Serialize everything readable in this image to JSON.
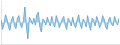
{
  "chart_data": {
    "type": "area",
    "x": [
      0,
      1,
      2,
      3,
      4,
      5,
      6,
      7,
      8,
      9,
      10,
      11,
      12,
      13,
      14,
      15,
      16,
      17,
      18,
      19,
      20,
      21,
      22,
      23,
      24,
      25,
      26,
      27,
      28,
      29,
      30,
      31,
      32,
      33,
      34,
      35,
      36,
      37,
      38,
      39,
      40,
      41,
      42,
      43,
      44,
      45,
      46,
      47,
      48,
      49,
      50,
      51,
      52,
      53,
      54,
      55,
      56,
      57,
      58,
      59,
      60,
      61,
      62,
      63,
      64,
      65,
      66,
      67,
      68,
      69,
      70,
      71,
      72,
      73,
      74,
      75,
      76,
      77,
      78,
      79
    ],
    "series": [
      {
        "type": "area",
        "color": "#7ab8e0",
        "values": [
          0.3,
          -0.8,
          -0.2,
          0.9,
          0.4,
          -0.5,
          -0.9,
          0.3,
          0.7,
          -0.4,
          -0.7,
          0.5,
          0.8,
          -0.3,
          -0.6,
          0.2,
          1.8,
          -0.4,
          -1.9,
          0.6,
          0.3,
          -0.2,
          0.5,
          -0.3,
          0.9,
          1.2,
          -0.5,
          -1.1,
          0.4,
          0.2,
          -0.3,
          0.6,
          0.1,
          -0.4,
          0.7,
          -0.2,
          -0.5,
          0.8,
          0.3,
          -0.6,
          -0.2,
          0.4,
          0.7,
          -0.3,
          -0.8,
          0.5,
          0.2,
          -0.4,
          0.6,
          -0.3,
          -0.6,
          0.3,
          0.9,
          -0.2,
          -0.7,
          0.4,
          0.1,
          -0.5,
          0.8,
          -0.3,
          -0.9,
          0.5,
          0.3,
          -0.4,
          0.7,
          0.2,
          -0.6,
          -0.2,
          0.8,
          0.4,
          -0.5,
          -0.8,
          0.3,
          0.6,
          -0.2,
          -0.4,
          0.7,
          0.2,
          -0.3,
          0.5
        ]
      },
      {
        "type": "line",
        "color": "#4d94cc",
        "values": [
          0.3,
          -0.8,
          -0.2,
          0.9,
          0.4,
          -0.5,
          -0.9,
          0.3,
          0.7,
          -0.4,
          -0.7,
          0.5,
          0.8,
          -0.3,
          -0.6,
          0.2,
          1.8,
          -0.4,
          -1.9,
          0.6,
          0.3,
          -0.2,
          0.5,
          -0.3,
          0.9,
          1.2,
          -0.5,
          -1.1,
          0.4,
          0.2,
          -0.3,
          0.6,
          0.1,
          -0.4,
          0.7,
          -0.2,
          -0.5,
          0.8,
          0.3,
          -0.6,
          -0.2,
          0.4,
          0.7,
          -0.3,
          -0.8,
          0.5,
          0.2,
          -0.4,
          0.6,
          -0.3,
          -0.6,
          0.3,
          0.9,
          -0.2,
          -0.7,
          0.4,
          0.1,
          -0.5,
          0.8,
          -0.3,
          -0.9,
          0.5,
          0.3,
          -0.4,
          0.7,
          0.2,
          -0.6,
          -0.2,
          0.8,
          0.4,
          -0.5,
          -0.8,
          0.3,
          0.6,
          -0.2,
          -0.4,
          0.7,
          0.2,
          -0.3,
          0.5
        ]
      }
    ],
    "xlim": [
      0,
      79
    ],
    "ylim": [
      -2.5,
      2.5
    ],
    "grid": false,
    "tick_labels": false
  }
}
